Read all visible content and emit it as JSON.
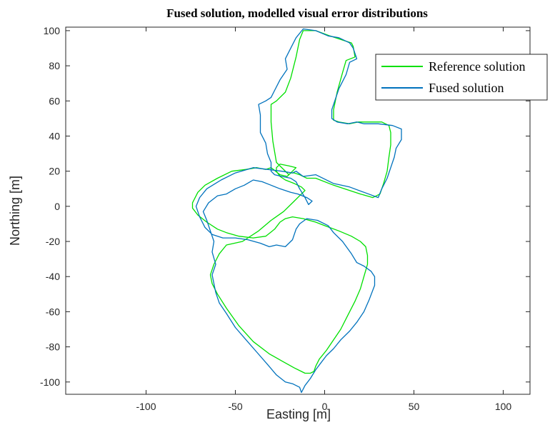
{
  "chart_data": {
    "type": "line",
    "title": "Fused solution, modelled visual error distributions",
    "xlabel": "Easting [m]",
    "ylabel": "Northing [m]",
    "xlim": [
      -145,
      115
    ],
    "ylim": [
      -107,
      102
    ],
    "xticks": [
      -100,
      -50,
      0,
      50,
      100
    ],
    "yticks": [
      -100,
      -80,
      -60,
      -40,
      -20,
      0,
      20,
      40,
      60,
      80,
      100
    ],
    "grid": false,
    "legend_position": "top-right",
    "series": [
      {
        "name": "Reference solution",
        "color": "#00e000",
        "points": [
          [
            27,
            5
          ],
          [
            20,
            7
          ],
          [
            5,
            12
          ],
          [
            -5,
            16
          ],
          [
            -10,
            16
          ],
          [
            -14,
            18
          ],
          [
            -17,
            19
          ],
          [
            -19,
            19
          ],
          [
            -21,
            17
          ],
          [
            -25,
            18
          ],
          [
            -30,
            22
          ],
          [
            -33,
            21
          ],
          [
            -38,
            22
          ],
          [
            -44,
            21
          ],
          [
            -52,
            20
          ],
          [
            -60,
            16
          ],
          [
            -67,
            12
          ],
          [
            -71,
            8
          ],
          [
            -74,
            2
          ],
          [
            -74,
            -1
          ],
          [
            -71,
            -5
          ],
          [
            -66,
            -9
          ],
          [
            -60,
            -13
          ],
          [
            -55,
            -15
          ],
          [
            -48,
            -17
          ],
          [
            -40,
            -18
          ],
          [
            -33,
            -17
          ],
          [
            -28,
            -13
          ],
          [
            -25,
            -9
          ],
          [
            -22,
            -7
          ],
          [
            -18,
            -6
          ],
          [
            -12,
            -7
          ],
          [
            -5,
            -9
          ],
          [
            0,
            -11
          ],
          [
            8,
            -14
          ],
          [
            15,
            -17
          ],
          [
            20,
            -20
          ],
          [
            23,
            -23
          ],
          [
            24,
            -28
          ],
          [
            24,
            -33
          ],
          [
            22,
            -40
          ],
          [
            20,
            -47
          ],
          [
            17,
            -54
          ],
          [
            13,
            -62
          ],
          [
            9,
            -70
          ],
          [
            5,
            -76
          ],
          [
            1,
            -82
          ],
          [
            -3,
            -87
          ],
          [
            -5,
            -91
          ],
          [
            -6,
            -94
          ],
          [
            -8,
            -95
          ],
          [
            -11,
            -95
          ],
          [
            -13,
            -94
          ],
          [
            -17,
            -92
          ],
          [
            -24,
            -88
          ],
          [
            -31,
            -84
          ],
          [
            -40,
            -77
          ],
          [
            -48,
            -68
          ],
          [
            -55,
            -58
          ],
          [
            -60,
            -50
          ],
          [
            -63,
            -44
          ],
          [
            -64,
            -39
          ],
          [
            -62,
            -33
          ],
          [
            -59,
            -27
          ],
          [
            -55,
            -22
          ],
          [
            -46,
            -20
          ],
          [
            -37,
            -14
          ],
          [
            -30,
            -8
          ],
          [
            -23,
            -3
          ],
          [
            -17,
            3
          ],
          [
            -13,
            7
          ],
          [
            -11,
            9
          ],
          [
            -13,
            11
          ],
          [
            -17,
            13
          ],
          [
            -22,
            15
          ],
          [
            -25,
            17
          ],
          [
            -27,
            20
          ],
          [
            -27,
            22
          ],
          [
            -25,
            24
          ],
          [
            -20,
            23
          ],
          [
            -16,
            22
          ],
          [
            -20,
            18
          ],
          [
            -27,
            25
          ],
          [
            -29,
            37
          ],
          [
            -30,
            48
          ],
          [
            -30,
            58
          ],
          [
            -27,
            60
          ],
          [
            -22,
            65
          ],
          [
            -19,
            73
          ],
          [
            -16,
            85
          ],
          [
            -14,
            95
          ],
          [
            -12,
            100
          ],
          [
            -5,
            100
          ],
          [
            3,
            97
          ],
          [
            9,
            95
          ],
          [
            15,
            93
          ],
          [
            16,
            91
          ],
          [
            17,
            85
          ],
          [
            12,
            83
          ],
          [
            10,
            76
          ],
          [
            7,
            65
          ],
          [
            5,
            55
          ],
          [
            5,
            49
          ],
          [
            8,
            48
          ],
          [
            14,
            47
          ],
          [
            19,
            48
          ],
          [
            23,
            48
          ],
          [
            32,
            48
          ],
          [
            36,
            46
          ],
          [
            37,
            42
          ],
          [
            37,
            35
          ],
          [
            36,
            28
          ],
          [
            35,
            20
          ],
          [
            33,
            13
          ],
          [
            31,
            7
          ],
          [
            27,
            5
          ]
        ]
      },
      {
        "name": "Fused solution",
        "color": "#0072bd",
        "points": [
          [
            30,
            5
          ],
          [
            22,
            8
          ],
          [
            14,
            11
          ],
          [
            5,
            13
          ],
          [
            -5,
            18
          ],
          [
            -12,
            17
          ],
          [
            -16,
            20
          ],
          [
            -18,
            19
          ],
          [
            -24,
            20
          ],
          [
            -32,
            21
          ],
          [
            -40,
            22
          ],
          [
            -50,
            19
          ],
          [
            -58,
            15
          ],
          [
            -66,
            10
          ],
          [
            -70,
            5
          ],
          [
            -72,
            0
          ],
          [
            -70,
            -6
          ],
          [
            -67,
            -12
          ],
          [
            -63,
            -16
          ],
          [
            -57,
            -18
          ],
          [
            -50,
            -18
          ],
          [
            -43,
            -19
          ],
          [
            -36,
            -21
          ],
          [
            -31,
            -23
          ],
          [
            -27,
            -22
          ],
          [
            -22,
            -23
          ],
          [
            -18,
            -19
          ],
          [
            -16,
            -13
          ],
          [
            -14,
            -10
          ],
          [
            -10,
            -7
          ],
          [
            -4,
            -8
          ],
          [
            2,
            -11
          ],
          [
            5,
            -15
          ],
          [
            10,
            -20
          ],
          [
            15,
            -27
          ],
          [
            18,
            -32
          ],
          [
            22,
            -34
          ],
          [
            26,
            -37
          ],
          [
            28,
            -40
          ],
          [
            28,
            -45
          ],
          [
            25,
            -53
          ],
          [
            22,
            -60
          ],
          [
            18,
            -66
          ],
          [
            14,
            -71
          ],
          [
            9,
            -76
          ],
          [
            5,
            -81
          ],
          [
            1,
            -85
          ],
          [
            -2,
            -89
          ],
          [
            -5,
            -93
          ],
          [
            -8,
            -98
          ],
          [
            -11,
            -102
          ],
          [
            -13,
            -106
          ],
          [
            -14,
            -103
          ],
          [
            -18,
            -101
          ],
          [
            -22,
            -100
          ],
          [
            -27,
            -96
          ],
          [
            -32,
            -90
          ],
          [
            -38,
            -83
          ],
          [
            -44,
            -76
          ],
          [
            -50,
            -69
          ],
          [
            -55,
            -61
          ],
          [
            -59,
            -55
          ],
          [
            -61,
            -49
          ],
          [
            -62,
            -44
          ],
          [
            -63,
            -39
          ],
          [
            -61,
            -33
          ],
          [
            -63,
            -26
          ],
          [
            -62,
            -20
          ],
          [
            -64,
            -14
          ],
          [
            -66,
            -8
          ],
          [
            -68,
            -3
          ],
          [
            -65,
            2
          ],
          [
            -60,
            6
          ],
          [
            -55,
            7
          ],
          [
            -50,
            10
          ],
          [
            -45,
            12
          ],
          [
            -40,
            15
          ],
          [
            -35,
            14
          ],
          [
            -30,
            12
          ],
          [
            -25,
            10
          ],
          [
            -19,
            8
          ],
          [
            -15,
            7
          ],
          [
            -10,
            5
          ],
          [
            -7,
            3
          ],
          [
            -9,
            1
          ],
          [
            -11,
            5
          ],
          [
            -14,
            10
          ],
          [
            -16,
            14
          ],
          [
            -19,
            16
          ],
          [
            -24,
            17
          ],
          [
            -28,
            18
          ],
          [
            -30,
            20
          ],
          [
            -30,
            25
          ],
          [
            -32,
            30
          ],
          [
            -33,
            36
          ],
          [
            -36,
            42
          ],
          [
            -36,
            52
          ],
          [
            -37,
            58
          ],
          [
            -33,
            60
          ],
          [
            -30,
            62
          ],
          [
            -28,
            66
          ],
          [
            -25,
            72
          ],
          [
            -21,
            78
          ],
          [
            -22,
            84
          ],
          [
            -18,
            92
          ],
          [
            -16,
            96
          ],
          [
            -12,
            101
          ],
          [
            -5,
            100
          ],
          [
            2,
            97
          ],
          [
            8,
            96
          ],
          [
            14,
            93
          ],
          [
            16,
            90
          ],
          [
            18,
            84
          ],
          [
            14,
            82
          ],
          [
            12,
            75
          ],
          [
            8,
            67
          ],
          [
            4,
            55
          ],
          [
            4,
            50
          ],
          [
            7,
            48
          ],
          [
            13,
            47
          ],
          [
            18,
            48
          ],
          [
            22,
            47
          ],
          [
            30,
            47
          ],
          [
            38,
            46
          ],
          [
            43,
            44
          ],
          [
            43,
            38
          ],
          [
            40,
            33
          ],
          [
            39,
            28
          ],
          [
            37,
            22
          ],
          [
            35,
            16
          ],
          [
            32,
            10
          ],
          [
            30,
            5
          ]
        ]
      }
    ]
  }
}
